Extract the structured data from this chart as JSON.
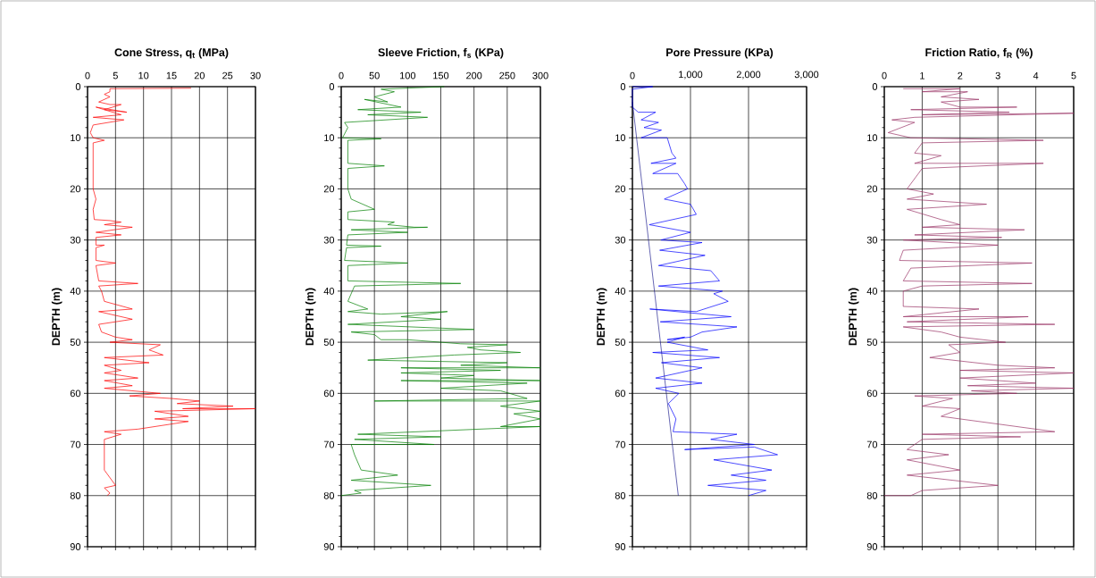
{
  "chart_data": [
    {
      "type": "line",
      "title": "Cone Stress, q$_{t}$  (MPa)",
      "ylabel": "DEPTH  (m)",
      "xlim": [
        0,
        30
      ],
      "xticks": [
        0,
        5,
        10,
        15,
        20,
        25,
        30
      ],
      "ylim": [
        90,
        0
      ],
      "yticks": [
        0,
        10,
        20,
        30,
        40,
        50,
        60,
        70,
        80,
        90
      ],
      "grid": true,
      "series": [
        {
          "color": "#ff0000",
          "x": [
            18.5,
            4,
            4,
            3,
            4,
            2,
            4,
            6,
            3,
            7,
            1.5,
            6,
            1,
            6.5,
            1,
            0.5,
            1,
            3,
            1,
            1,
            1.5,
            1,
            1.2,
            4,
            6,
            3,
            8,
            1.5,
            6,
            1.5,
            1.5,
            3,
            1.5,
            1.5,
            5,
            1.5,
            2,
            9,
            2,
            2.5,
            3,
            8,
            2,
            8,
            2,
            2.5,
            5,
            8,
            4,
            13,
            11,
            13.5,
            3,
            11,
            3,
            6,
            3,
            9,
            3,
            8,
            3,
            13,
            7.5,
            15,
            20,
            16,
            26,
            17,
            30,
            12,
            18,
            12,
            18,
            15,
            9,
            3,
            6,
            3,
            3,
            5,
            3,
            4,
            3.5
          ],
          "values": [
            0.3,
            0.4,
            1,
            1.5,
            2,
            3,
            3.5,
            3.5,
            4.5,
            5,
            4,
            5.5,
            6,
            6.5,
            7.5,
            9,
            10,
            10.5,
            11,
            20,
            22,
            24,
            26,
            26.2,
            26.5,
            27,
            27.5,
            28.5,
            29,
            29.5,
            31,
            31,
            31.5,
            34,
            34.5,
            35,
            38,
            38.5,
            39,
            40,
            42,
            43.5,
            44,
            45.5,
            46.5,
            48,
            49,
            49.5,
            50,
            50.5,
            51.5,
            52.5,
            53,
            54,
            54.5,
            55.5,
            56,
            57,
            57.5,
            58.5,
            59,
            60,
            60.5,
            61,
            61.5,
            62,
            62.5,
            63,
            63,
            63.5,
            64.5,
            65,
            65.5,
            66,
            67,
            67.5,
            68,
            69,
            75,
            78,
            78.5,
            79.5,
            80
          ]
        }
      ]
    },
    {
      "type": "line",
      "title": "Sleeve Friction, f$_{s}$  (KPa)",
      "ylabel": "DEPTH  (m)",
      "xlim": [
        0,
        300
      ],
      "xticks": [
        0,
        50,
        100,
        150,
        200,
        250,
        300
      ],
      "ylim": [
        90,
        0
      ],
      "yticks": [
        0,
        10,
        20,
        30,
        40,
        50,
        60,
        70,
        80,
        90
      ],
      "grid": true,
      "series": [
        {
          "color": "#008000",
          "x": [
            155,
            60,
            80,
            50,
            70,
            35,
            90,
            25,
            120,
            40,
            130,
            5,
            10,
            2,
            60,
            10,
            10,
            65,
            10,
            10,
            15,
            50,
            10,
            10,
            80,
            70,
            110,
            130,
            15,
            100,
            10,
            8,
            60,
            8,
            5,
            100,
            10,
            10,
            180,
            20,
            10,
            40,
            10,
            60,
            160,
            90,
            150,
            10,
            200,
            15,
            50,
            60,
            100,
            150,
            180,
            250,
            190,
            210,
            270,
            170,
            40,
            250,
            180,
            300,
            90,
            240,
            90,
            200,
            150,
            300,
            90,
            280,
            150,
            240,
            280,
            50,
            300,
            240,
            300,
            260,
            300,
            240,
            300,
            25,
            150,
            20,
            140,
            15,
            20,
            30,
            85,
            15,
            135,
            20,
            30,
            0
          ],
          "values": [
            0,
            0.5,
            1,
            2,
            3,
            2.5,
            4,
            4.5,
            5,
            5.5,
            6,
            7,
            8,
            10,
            10.2,
            10.5,
            15,
            15.5,
            16,
            20,
            22,
            24,
            24.5,
            26,
            26.5,
            27,
            27.5,
            27.5,
            28,
            28.5,
            29,
            31,
            31.2,
            31.5,
            34,
            34.5,
            35,
            38,
            38.5,
            39,
            42,
            43.5,
            44,
            44.5,
            44,
            45,
            45.5,
            46.5,
            47.5,
            48,
            48.5,
            49.5,
            49.5,
            50,
            50.3,
            50.5,
            51,
            51.5,
            52,
            52.5,
            53.5,
            54,
            54.5,
            55,
            55,
            55.5,
            56,
            56.5,
            57,
            57.5,
            57.5,
            58,
            59,
            59.5,
            61,
            61.5,
            61.5,
            62.5,
            63.5,
            64,
            65,
            66.5,
            66.5,
            68,
            68.5,
            69,
            70,
            70,
            72,
            75,
            76,
            77,
            78,
            79,
            79.5,
            80
          ]
        }
      ]
    },
    {
      "type": "line",
      "title": "Pore Pressure (KPa)",
      "ylabel": "DEPTH  (m)",
      "xlim": [
        0,
        3000
      ],
      "xticks": [
        0,
        {
          "value": 1000,
          "label": "1,000"
        },
        {
          "value": 2000,
          "label": "2,000"
        },
        {
          "value": 3000,
          "label": "3,000"
        }
      ],
      "ylim": [
        90,
        0
      ],
      "yticks": [
        0,
        10,
        20,
        30,
        40,
        50,
        60,
        70,
        80,
        90
      ],
      "grid": true,
      "series": [
        {
          "color": "#0000ff",
          "x": [
            0,
            350,
            0,
            0,
            100,
            400,
            150,
            450,
            200,
            500,
            150,
            600,
            680,
            750,
            320,
            750,
            350,
            780,
            900,
            950,
            550,
            1000,
            1100,
            290,
            1000,
            490,
            1200,
            470,
            1250,
            450,
            1350,
            1500,
            450,
            1550,
            1400,
            1650,
            1100,
            300,
            1700,
            480,
            1800,
            1200,
            1000,
            600,
            900,
            600,
            1300,
            350,
            1500,
            500,
            1200,
            400,
            1200,
            400,
            800,
            620,
            750,
            700,
            1800,
            1350,
            2100,
            900,
            2100,
            2500,
            1400,
            2400,
            1700,
            2300,
            1300,
            2300,
            2000
          ],
          "values": [
            0,
            0,
            0.5,
            4,
            5,
            5,
            6.5,
            7,
            8,
            8.5,
            10,
            10,
            13,
            14,
            15,
            15,
            17,
            17,
            19,
            20,
            22,
            23,
            25,
            27,
            28.5,
            30,
            30.5,
            32,
            33,
            35,
            36,
            38,
            39,
            40,
            40.5,
            42,
            44,
            43.5,
            45,
            46,
            47,
            48,
            49,
            49.5,
            49,
            50,
            51.5,
            52,
            53,
            54,
            55,
            57,
            58,
            59,
            60,
            62,
            65,
            67.5,
            68,
            69,
            70,
            71,
            70.5,
            72,
            73,
            75,
            76,
            77,
            78,
            79,
            80
          ]
        },
        {
          "color": "#000080",
          "x": [
            0,
            790
          ],
          "values": [
            3,
            80
          ]
        }
      ]
    },
    {
      "type": "line",
      "title": "Friction Ratio, f$_{R}$  (%)",
      "ylabel": "DEPTH  (m)",
      "xlim": [
        0,
        5
      ],
      "xticks": [
        0,
        1,
        2,
        3,
        4,
        5
      ],
      "ylim": [
        90,
        0
      ],
      "yticks": [
        0,
        10,
        20,
        30,
        40,
        50,
        60,
        70,
        80,
        90
      ],
      "grid": true,
      "series": [
        {
          "color": "#993366",
          "x": [
            0.5,
            2,
            1,
            2.2,
            1.5,
            2.5,
            1.5,
            2,
            3.5,
            0.7,
            3.3,
            1,
            5,
            0.8,
            0.2,
            0.8,
            0.1,
            0.7,
            4.2,
            1,
            0.8,
            1.5,
            0.8,
            4.2,
            1,
            0.6,
            1.3,
            0.6,
            2.7,
            0.6,
            1.5,
            2,
            1,
            3.7,
            0.8,
            3.1,
            0.5,
            3,
            0.5,
            0.4,
            3.9,
            0.7,
            0.5,
            3.9,
            1,
            0.5,
            0.5,
            2.5,
            0.5,
            3.8,
            0.6,
            4.5,
            0.5,
            1.5,
            2,
            3.2,
            1.7,
            2,
            1.2,
            3,
            4.5,
            2,
            5,
            2,
            4,
            2.2,
            5,
            2.3,
            3.5,
            0.8,
            1.8,
            1,
            2,
            1.5,
            2,
            4.5,
            1,
            3.6,
            1,
            0.6,
            1.7,
            0.6,
            2,
            0.6,
            3,
            1,
            0.7,
            0
          ],
          "values": [
            0.4,
            0.4,
            1,
            1,
            2,
            2.5,
            3,
            4,
            4,
            4.5,
            5,
            5.5,
            5.2,
            6,
            6.5,
            7,
            9,
            10,
            10.5,
            11,
            13,
            13.5,
            15,
            15,
            16,
            20,
            21,
            22,
            23,
            24,
            26,
            27,
            27.5,
            28,
            29,
            29.5,
            30,
            31,
            32,
            34,
            34.5,
            35.5,
            38,
            38.5,
            39,
            40,
            43,
            43.5,
            45,
            45,
            46,
            46.5,
            47,
            48,
            49,
            50,
            50.5,
            52,
            53,
            54.5,
            55,
            55.5,
            56,
            57,
            58,
            58.5,
            59,
            59.5,
            60,
            60.5,
            61,
            62.5,
            63,
            64.5,
            65,
            67.5,
            68,
            68.5,
            69,
            71,
            72,
            73,
            75,
            76,
            78,
            79,
            80,
            80
          ]
        }
      ]
    }
  ]
}
